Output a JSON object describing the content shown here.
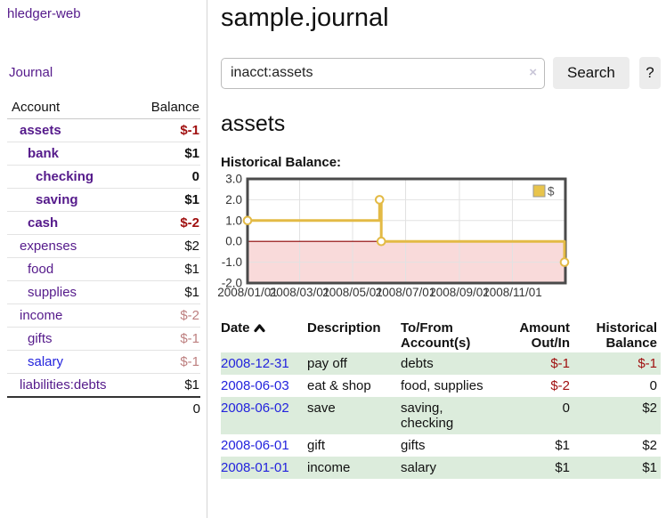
{
  "app": {
    "title": "hledger-web"
  },
  "sidebar": {
    "journal_label": "Journal",
    "accounts": {
      "headers": {
        "account": "Account",
        "balance": "Balance"
      },
      "rows": [
        {
          "name": "assets",
          "balance": "$-1",
          "depth": 1,
          "bold": true,
          "balance_style": "neg-strong"
        },
        {
          "name": "bank",
          "balance": "$1",
          "depth": 2,
          "bold": true,
          "balance_style": "normal"
        },
        {
          "name": "checking",
          "balance": "0",
          "depth": 3,
          "bold": true,
          "balance_style": "normal"
        },
        {
          "name": "saving",
          "balance": "$1",
          "depth": 3,
          "bold": true,
          "balance_style": "normal"
        },
        {
          "name": "cash",
          "balance": "$-2",
          "depth": 2,
          "bold": true,
          "balance_style": "neg-strong"
        },
        {
          "name": "expenses",
          "balance": "$2",
          "depth": 1,
          "bold": false,
          "balance_style": "normal"
        },
        {
          "name": "food",
          "balance": "$1",
          "depth": 2,
          "bold": false,
          "balance_style": "normal"
        },
        {
          "name": "supplies",
          "balance": "$1",
          "depth": 2,
          "bold": false,
          "balance_style": "normal"
        },
        {
          "name": "income",
          "balance": "$-2",
          "depth": 1,
          "bold": false,
          "balance_style": "neg-muted"
        },
        {
          "name": "gifts",
          "balance": "$-1",
          "depth": 2,
          "bold": false,
          "balance_style": "neg-muted"
        },
        {
          "name": "salary",
          "balance": "$-1",
          "depth": 2,
          "bold": false,
          "balance_style": "neg-muted",
          "link_style": "unvisited"
        },
        {
          "name": "liabilities:debts",
          "balance": "$1",
          "depth": 1,
          "bold": false,
          "balance_style": "normal"
        }
      ],
      "total": "0"
    }
  },
  "main": {
    "title": "sample.journal",
    "search": {
      "value": "inacct:assets",
      "clear_icon": "×",
      "button_label": "Search",
      "help_label": "?"
    },
    "account_heading": "assets",
    "chart_heading": "Historical Balance:",
    "register": {
      "headers": {
        "date": "Date",
        "description": "Description",
        "accounts": "To/From Account(s)",
        "amount": "Amount Out/In",
        "balance": "Historical Balance"
      },
      "rows": [
        {
          "date": "2008-12-31",
          "description": "pay off",
          "accounts": "debts",
          "amount": "$-1",
          "balance": "$-1",
          "amount_negative": true,
          "balance_negative": true,
          "shaded": true
        },
        {
          "date": "2008-06-03",
          "description": "eat & shop",
          "accounts": "food, supplies",
          "amount": "$-2",
          "balance": "0",
          "amount_negative": true,
          "balance_negative": false,
          "shaded": false
        },
        {
          "date": "2008-06-02",
          "description": "save",
          "accounts": "saving, checking",
          "amount": "0",
          "balance": "$2",
          "amount_negative": false,
          "balance_negative": false,
          "shaded": true
        },
        {
          "date": "2008-06-01",
          "description": "gift",
          "accounts": "gifts",
          "amount": "$1",
          "balance": "$2",
          "amount_negative": false,
          "balance_negative": false,
          "shaded": false
        },
        {
          "date": "2008-01-01",
          "description": "income",
          "accounts": "salary",
          "amount": "$1",
          "balance": "$1",
          "amount_negative": false,
          "balance_negative": false,
          "shaded": true
        }
      ]
    }
  },
  "chart_data": {
    "type": "line",
    "title": "Historical Balance:",
    "step": true,
    "series": [
      {
        "name": "$",
        "points": [
          {
            "date": "2008-01-01",
            "value": 1
          },
          {
            "date": "2008-06-01",
            "value": 2
          },
          {
            "date": "2008-06-03",
            "value": 0
          },
          {
            "date": "2008-12-31",
            "value": -1
          }
        ]
      }
    ],
    "x_range": [
      "2008-01-01",
      "2009-01-01"
    ],
    "ylim": [
      -2,
      3
    ],
    "y_ticks": [
      {
        "value": 3,
        "label": "3.0"
      },
      {
        "value": 2,
        "label": "2.0"
      },
      {
        "value": 1,
        "label": "1.0"
      },
      {
        "value": 0,
        "label": "0.0"
      },
      {
        "value": -1,
        "label": "-1.0"
      },
      {
        "value": -2,
        "label": "-2.0"
      }
    ],
    "x_ticks": [
      {
        "date": "2008-01-01",
        "label": "2008/01/01"
      },
      {
        "date": "2008-03-01",
        "label": "2008/03/01"
      },
      {
        "date": "2008-05-01",
        "label": "2008/05/01"
      },
      {
        "date": "2008-07-01",
        "label": "2008/07/01"
      },
      {
        "date": "2008-09-01",
        "label": "2008/09/01"
      },
      {
        "date": "2008-11-01",
        "label": "2008/11/01"
      }
    ],
    "legend": {
      "position": "top-right",
      "label": "$"
    },
    "grid": true,
    "zero_line": true,
    "negative_region_shaded": true
  },
  "colors": {
    "link_visited_purple": "#551a8b",
    "link_blue": "#2323dd",
    "negative_strong": "#a01010",
    "negative_muted": "#bd7f7f",
    "row_green": "#dcecdc",
    "chart_line_gold": "#e3ba45",
    "chart_negative_fill": "#f9dada",
    "chart_zero_line": "#8b0000",
    "chart_border": "#4a4a4a",
    "gridline": "#e2e2e2",
    "button_bg": "#ececec"
  }
}
